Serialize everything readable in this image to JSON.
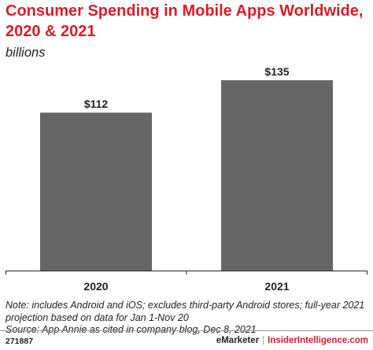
{
  "header": {
    "title": "Consumer Spending in Mobile Apps Worldwide, 2020 & 2021",
    "subtitle": "billions"
  },
  "chart_data": {
    "type": "bar",
    "title": "Consumer Spending in Mobile Apps Worldwide, 2020 & 2021",
    "subtitle": "billions",
    "categories": [
      "2020",
      "2021"
    ],
    "values": [
      112,
      135
    ],
    "value_labels": [
      "$112",
      "$135"
    ],
    "ylim": [
      0,
      150
    ],
    "grid": false,
    "bar_color": "#666666",
    "xlabel": "",
    "ylabel": ""
  },
  "notes": {
    "line1": "Note: includes Android and iOS; excludes third-party Android stores; full-year 2021",
    "line2": "projection based on data for Jan 1-Nov 20",
    "line3": "Source: App Annie as cited in company blog, Dec 8, 2021"
  },
  "footer": {
    "chart_id": "271887",
    "brand_left": "eMarketer",
    "separator": "|",
    "brand_right": "InsiderIntelligence.com"
  },
  "colors": {
    "title": "#d71e28",
    "bars": "#666666",
    "text": "#222222"
  }
}
